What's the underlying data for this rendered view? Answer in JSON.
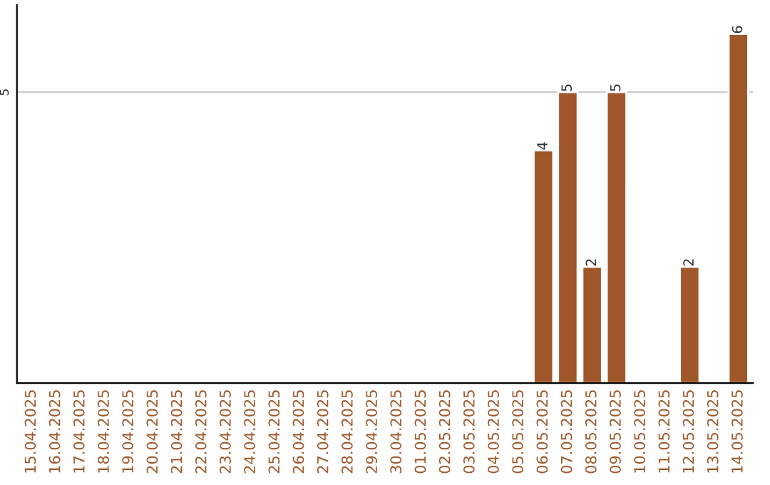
{
  "chart_data": {
    "type": "bar",
    "ylim": [
      0,
      6.5
    ],
    "categories": [
      "15.04.2025",
      "16.04.2025",
      "17.04.2025",
      "18.04.2025",
      "19.04.2025",
      "20.04.2025",
      "21.04.2025",
      "22.04.2025",
      "23.04.2025",
      "24.04.2025",
      "25.04.2025",
      "26.04.2025",
      "27.04.2025",
      "28.04.2025",
      "29.04.2025",
      "30.04.2025",
      "01.05.2025",
      "02.05.2025",
      "03.05.2025",
      "04.05.2025",
      "05.05.2025",
      "06.05.2025",
      "07.05.2025",
      "08.05.2025",
      "09.05.2025",
      "10.05.2025",
      "11.05.2025",
      "12.05.2025",
      "13.05.2025",
      "14.05.2025"
    ],
    "values": [
      null,
      null,
      null,
      null,
      null,
      null,
      null,
      null,
      null,
      null,
      null,
      null,
      null,
      null,
      null,
      null,
      null,
      null,
      null,
      null,
      null,
      4,
      5,
      2,
      5,
      null,
      null,
      2,
      null,
      6
    ],
    "value_labels": [
      null,
      null,
      null,
      null,
      null,
      null,
      null,
      null,
      null,
      null,
      null,
      null,
      null,
      null,
      null,
      null,
      null,
      null,
      null,
      null,
      null,
      "4",
      "5",
      "2",
      "5",
      null,
      null,
      "2",
      null,
      "6"
    ],
    "color": "#a0582a",
    "ref_lines": [
      {
        "axis": "y",
        "value": 5,
        "label": "5",
        "color": "#cccccc"
      }
    ]
  }
}
